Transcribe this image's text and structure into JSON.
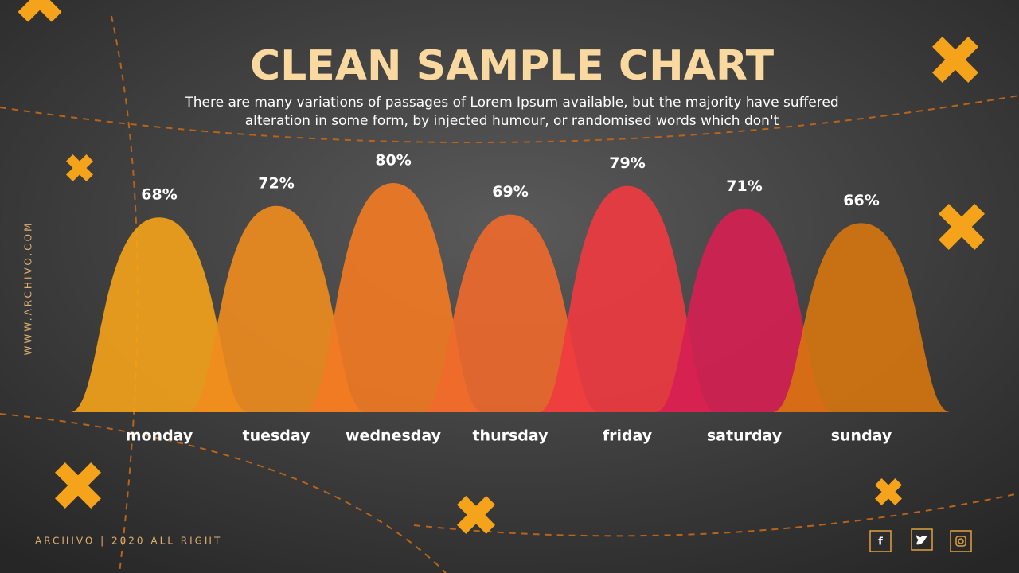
{
  "header": {
    "title": "CLEAN SAMPLE CHART",
    "subtitle_lines": [
      "There are many variations of passages of Lorem Ipsum available, but the majority have suffered",
      "alteration in some form, by injected humour, or randomised words which don't"
    ]
  },
  "side_text": "WWW.ARCHIVO.COM",
  "footer": "ARCHIVO | 2020 ALL RIGHT",
  "chart_data": {
    "type": "bar",
    "categories": [
      "monday",
      "tuesday",
      "wednesday",
      "thursday",
      "friday",
      "saturday",
      "sunday"
    ],
    "values": [
      68,
      72,
      80,
      69,
      79,
      71,
      66
    ],
    "value_labels": [
      "68%",
      "72%",
      "80%",
      "69%",
      "79%",
      "71%",
      "66%"
    ],
    "colors": [
      "#f5a31a",
      "#f08c1e",
      "#f37a22",
      "#f06a2c",
      "#ef3a3f",
      "#d61f52",
      "#d7760f"
    ]
  }
}
